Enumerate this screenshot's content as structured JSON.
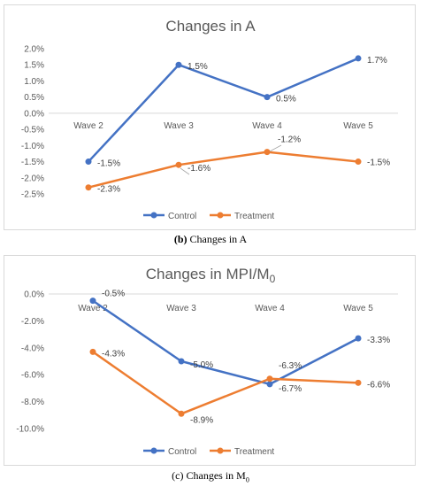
{
  "chart_data": [
    {
      "type": "line",
      "title": "Changes in A",
      "categories": [
        "Wave 2",
        "Wave 3",
        "Wave 4",
        "Wave 5"
      ],
      "ylim": [
        -2.5,
        2.0
      ],
      "yticks": [
        "2.0%",
        "1.5%",
        "1.0%",
        "0.5%",
        "0.0%",
        "-0.5%",
        "-1.0%",
        "-1.5%",
        "-2.0%",
        "-2.5%"
      ],
      "grid": false,
      "legend_position": "bottom",
      "series": [
        {
          "name": "Control",
          "color": "#4472C4",
          "values": [
            -1.5,
            1.5,
            0.5,
            1.7
          ],
          "labels": [
            "-1.5%",
            "1.5%",
            "0.5%",
            "1.7%"
          ]
        },
        {
          "name": "Treatment",
          "color": "#ED7D31",
          "values": [
            -2.3,
            -1.6,
            -1.2,
            -1.5
          ],
          "labels": [
            "-2.3%",
            "-1.6%",
            "-1.2%",
            "-1.5%"
          ]
        }
      ],
      "caption_letter": "(b)",
      "caption_text": "Changes in A"
    },
    {
      "type": "line",
      "title": "Changes in MPI/M",
      "title_sub": "0",
      "categories": [
        "Wave 2",
        "Wave 3",
        "Wave 4",
        "Wave 5"
      ],
      "ylim": [
        -10.0,
        0.0
      ],
      "yticks": [
        "0.0%",
        "-2.0%",
        "-4.0%",
        "-6.0%",
        "-8.0%",
        "-10.0%"
      ],
      "grid": false,
      "legend_position": "bottom",
      "series": [
        {
          "name": "Control",
          "color": "#4472C4",
          "values": [
            -0.5,
            -5.0,
            -6.7,
            -3.3
          ],
          "labels": [
            "-0.5%",
            "-5.0%",
            "-6.7%",
            "-3.3%"
          ]
        },
        {
          "name": "Treatment",
          "color": "#ED7D31",
          "values": [
            -4.3,
            -8.9,
            -6.3,
            -6.6
          ],
          "labels": [
            "-4.3%",
            "-8.9%",
            "-6.3%",
            "-6.6%"
          ]
        }
      ],
      "caption_text": "(c) Changes in M",
      "caption_sub": "0"
    }
  ]
}
